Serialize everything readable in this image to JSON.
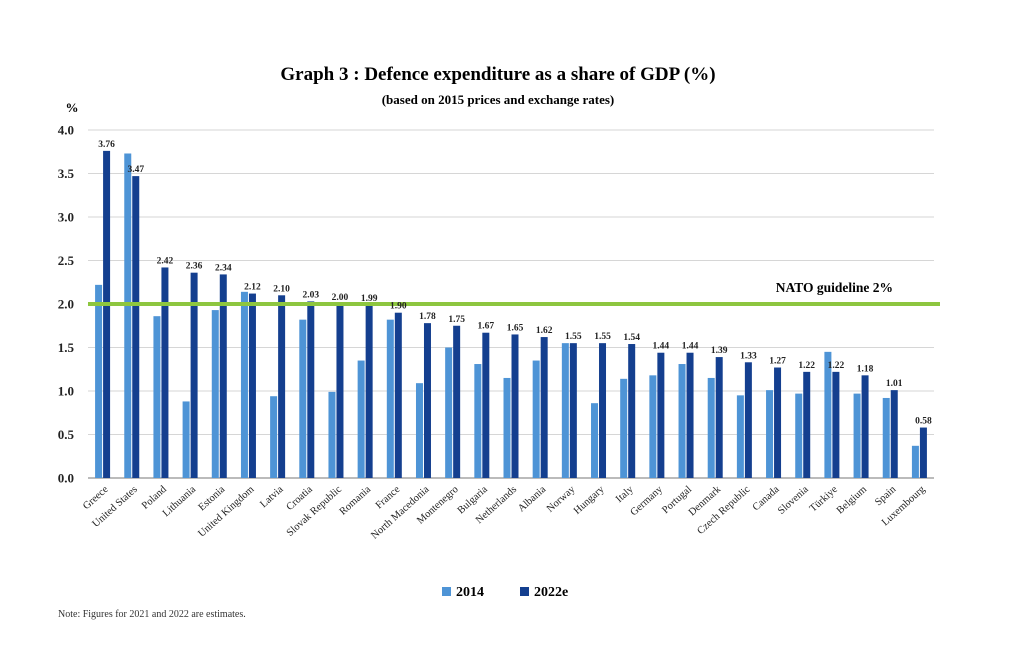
{
  "chart_data": {
    "type": "bar",
    "title": "Graph 3 : Defence expenditure as a share of GDP (%)",
    "subtitle": "(based on 2015 prices and exchange rates)",
    "ylabel": "%",
    "ylim": [
      0,
      4.0
    ],
    "yticks": [
      "0.0",
      "0.5",
      "1.0",
      "1.5",
      "2.0",
      "2.5",
      "3.0",
      "3.5",
      "4.0"
    ],
    "grid": true,
    "categories": [
      "Greece",
      "United States",
      "Poland",
      "Lithuania",
      "Estonia",
      "United Kingdom",
      "Latvia",
      "Croatia",
      "Slovak Republic",
      "Romania",
      "France",
      "North Macedonia",
      "Montenegro",
      "Bulgaria",
      "Netherlands",
      "Albania",
      "Norway",
      "Hungary",
      "Italy",
      "Germany",
      "Portugal",
      "Denmark",
      "Czech Republic",
      "Canada",
      "Slovenia",
      "Türkiye",
      "Belgium",
      "Spain",
      "Luxembourg"
    ],
    "series": [
      {
        "name": "2014",
        "color": "#4e94d6",
        "values": [
          2.22,
          3.73,
          1.86,
          0.88,
          1.93,
          2.14,
          0.94,
          1.82,
          0.99,
          1.35,
          1.82,
          1.09,
          1.5,
          1.31,
          1.15,
          1.35,
          1.55,
          0.86,
          1.14,
          1.18,
          1.31,
          1.15,
          0.95,
          1.01,
          0.97,
          1.45,
          0.97,
          0.92,
          0.37
        ]
      },
      {
        "name": "2022e",
        "color": "#143f8f",
        "values": [
          3.76,
          3.47,
          2.42,
          2.36,
          2.34,
          2.12,
          2.1,
          2.03,
          2.0,
          1.99,
          1.9,
          1.78,
          1.75,
          1.67,
          1.65,
          1.62,
          1.55,
          1.55,
          1.54,
          1.44,
          1.44,
          1.39,
          1.33,
          1.27,
          1.22,
          1.22,
          1.18,
          1.01,
          0.58
        ],
        "labels": [
          "3.76",
          "3.47",
          "2.42",
          "2.36",
          "2.34",
          "2.12",
          "2.10",
          "2.03",
          "2.00",
          "1.99",
          "1.90",
          "1.78",
          "1.75",
          "1.67",
          "1.65",
          "1.62",
          "1.55",
          "1.55",
          "1.54",
          "1.44",
          "1.44",
          "1.39",
          "1.33",
          "1.27",
          "1.22",
          "1.22",
          "1.18",
          "1.01",
          "0.58"
        ]
      }
    ],
    "reference_line": {
      "value": 2.0,
      "label": "NATO guideline 2%",
      "color": "#8dc63f"
    },
    "legend": {
      "placement": "bottom-center",
      "entries": [
        "2014",
        "2022e"
      ]
    },
    "note": "Note: Figures for 2021 and 2022 are estimates."
  }
}
